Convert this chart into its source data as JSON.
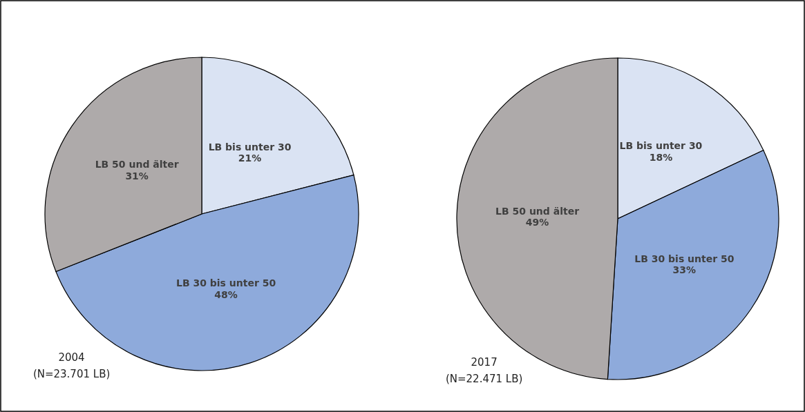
{
  "chart_data": [
    {
      "type": "pie",
      "title": "2004",
      "subtitle": "(N=23.701 LB)",
      "categories": [
        "LB bis unter 30",
        "LB 30 bis unter 50",
        "LB 50 und älter"
      ],
      "values": [
        21,
        48,
        31
      ],
      "value_labels": [
        "21%",
        "48%",
        "31%"
      ],
      "colors": [
        "#dae3f3",
        "#8eaadb",
        "#aeaaaa"
      ],
      "legend": false
    },
    {
      "type": "pie",
      "title": "2017",
      "subtitle": "(N=22.471 LB)",
      "categories": [
        "LB bis unter 30",
        "LB 30 bis unter 50",
        "LB 50 und älter"
      ],
      "values": [
        18,
        33,
        49
      ],
      "value_labels": [
        "18%",
        "33%",
        "49%"
      ],
      "colors": [
        "#dae3f3",
        "#8eaadb",
        "#aeaaaa"
      ],
      "legend": false
    }
  ]
}
